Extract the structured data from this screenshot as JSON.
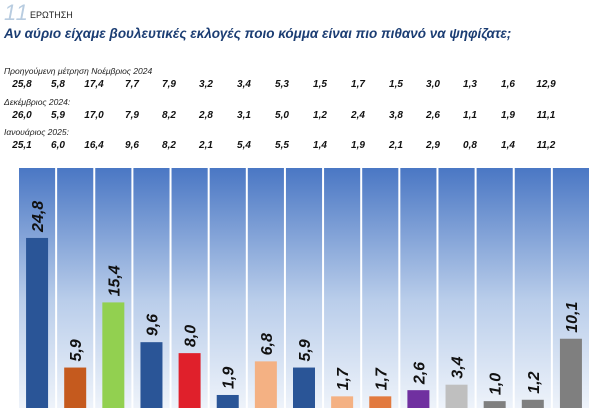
{
  "header": {
    "question_number": "11",
    "question_label": "ΕΡΩΤΗΣΗ",
    "question_text": "Αν αύριο είχαμε βουλευτικές εκλογές ποιο κόμμα είναι πιο πιθανό να ψηφίζατε;"
  },
  "previous_measurements": [
    {
      "label": "Προηγούμενη μέτρηση Νοέμβριος 2024",
      "values": [
        "25,8",
        "5,8",
        "17,4",
        "7,7",
        "7,9",
        "3,2",
        "3,4",
        "5,3",
        "1,5",
        "1,7",
        "1,5",
        "3,0",
        "1,3",
        "1,6",
        "12,9"
      ]
    },
    {
      "label": "Δεκέμβριος 2024:",
      "values": [
        "26,0",
        "5,9",
        "17,0",
        "7,9",
        "8,2",
        "2,8",
        "3,1",
        "5,0",
        "1,2",
        "2,4",
        "3,8",
        "2,6",
        "1,1",
        "1,9",
        "11,1"
      ]
    },
    {
      "label": "Ιανουάριος 2025:",
      "values": [
        "25,1",
        "6,0",
        "16,4",
        "9,6",
        "8,2",
        "2,1",
        "5,4",
        "5,5",
        "1,4",
        "1,9",
        "2,1",
        "2,9",
        "0,8",
        "1,4",
        "11,2"
      ]
    }
  ],
  "chart_data": {
    "type": "bar",
    "values": [
      24.8,
      5.9,
      15.4,
      9.6,
      8.0,
      1.9,
      6.8,
      5.9,
      1.7,
      1.7,
      2.6,
      3.4,
      1.0,
      1.2,
      10.1
    ],
    "labels": [
      "24,8",
      "5,9",
      "15,4",
      "9,6",
      "8,0",
      "1,9",
      "6,8",
      "5,9",
      "1,7",
      "1,7",
      "2,6",
      "3,4",
      "1,0",
      "1,2",
      "10,1"
    ],
    "colors": [
      "#2a5597",
      "#c55a1e",
      "#92d050",
      "#2a5597",
      "#e0202b",
      "#2a5597",
      "#f4b183",
      "#2a5597",
      "#f4b183",
      "#e27a3f",
      "#7030a0",
      "#bfbfbf",
      "#7f7f7f",
      "#7f7f7f",
      "#7f7f7f"
    ],
    "ylim": [
      0,
      35
    ],
    "background": {
      "panel_top": "#4a77c4",
      "panel_bottom": "#eef3fa",
      "divider": "#ffffff"
    }
  }
}
